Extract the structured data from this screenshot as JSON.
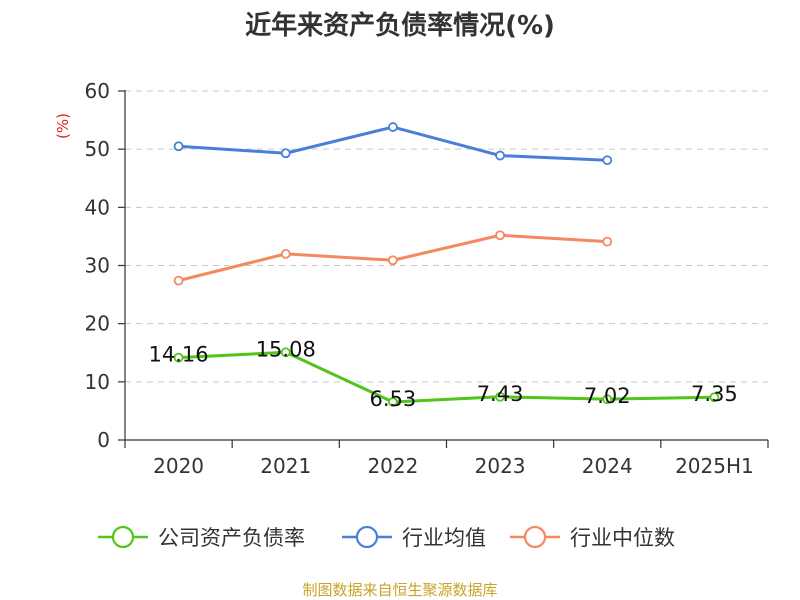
{
  "chart_data": {
    "type": "line",
    "title": "近年来资产负债率情况(%)",
    "ylabel": "(%)",
    "xlabel": "",
    "categories": [
      "2020",
      "2021",
      "2022",
      "2023",
      "2024",
      "2025H1"
    ],
    "ylim": [
      0,
      60
    ],
    "yticks": [
      0,
      10,
      20,
      30,
      40,
      50,
      60
    ],
    "grid": true,
    "legend_position": "bottom",
    "series": [
      {
        "name": "公司资产负债率",
        "color": "#52c41a",
        "values": [
          14.16,
          15.08,
          6.53,
          7.43,
          7.02,
          7.35
        ],
        "labels": [
          "14.16",
          "15.08",
          "6.53",
          "7.43",
          "7.02",
          "7.35"
        ]
      },
      {
        "name": "行业均值",
        "color": "#4a7fd8",
        "values": [
          50.5,
          49.3,
          53.8,
          48.9,
          48.1,
          null
        ]
      },
      {
        "name": "行业中位数",
        "color": "#f4895f",
        "values": [
          27.4,
          32.0,
          30.9,
          35.2,
          34.1,
          null
        ]
      }
    ]
  },
  "footer": {
    "source": "制图数据来自恒生聚源数据库"
  }
}
